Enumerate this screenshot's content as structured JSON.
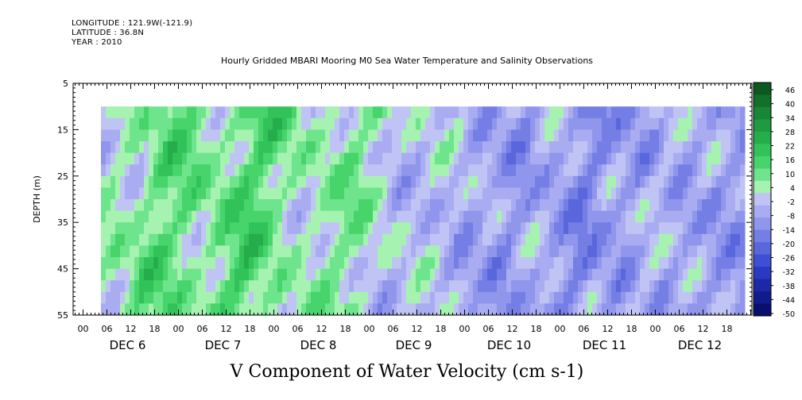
{
  "header": {
    "longitude": "LONGITUDE : 121.9W(-121.9)",
    "latitude": "LATITUDE : 36.8N",
    "year": "YEAR : 2010"
  },
  "chart_data": {
    "type": "heatmap",
    "title": "Hourly Gridded MBARI Mooring M0 Sea Water Temperature and Salinity Observations",
    "xlabel": "V Component of Water Velocity (cm s-1)",
    "ylabel": "DEPTH (m)",
    "ylim": [
      55,
      5
    ],
    "y_ticks": [
      5,
      15,
      25,
      35,
      45,
      55
    ],
    "data_depth_range": [
      10,
      55
    ],
    "x_hour_ticks": [
      "00",
      "06",
      "12",
      "18",
      "00",
      "06",
      "12",
      "18",
      "00",
      "06",
      "12",
      "18",
      "00",
      "06",
      "12",
      "18",
      "00",
      "06",
      "12",
      "18",
      "00",
      "06",
      "12",
      "18",
      "00",
      "06",
      "12",
      "18"
    ],
    "x_day_labels": [
      "DEC 6",
      "DEC 7",
      "DEC 8",
      "DEC 9",
      "DEC 10",
      "DEC 11",
      "DEC 12"
    ],
    "colorbar": {
      "labels": [
        "46",
        "40",
        "34",
        "28",
        "22",
        "16",
        "10",
        "4",
        "-2",
        "-8",
        "-14",
        "-20",
        "-26",
        "-32",
        "-38",
        "-44",
        "-50"
      ],
      "range": [
        -50,
        49
      ],
      "colors": [
        "#0a5a1e",
        "#13702a",
        "#198536",
        "#1f9a40",
        "#26ad4b",
        "#31c25a",
        "#46d46b",
        "#6ee48c",
        "#a6f2b0",
        "#c0c4f4",
        "#a9acf0",
        "#8f96ec",
        "#747ee4",
        "#5a66dc",
        "#3f4fd4",
        "#2a39c4",
        "#1c28a8",
        "#111c8c",
        "#080f6c"
      ]
    },
    "series": [
      {
        "name": "",
        "description_values": [
          {
            "x": "DEC 6 04",
            "v": -4
          },
          {
            "x": "DEC 6 10",
            "v": 6
          },
          {
            "x": "DEC 6 16",
            "v": 2
          },
          {
            "x": "DEC 6 22",
            "v": 14
          },
          {
            "x": "DEC 7 04",
            "v": 12
          },
          {
            "x": "DEC 7 10",
            "v": 4
          },
          {
            "x": "DEC 7 16",
            "v": 10
          },
          {
            "x": "DEC 7 22",
            "v": 18
          },
          {
            "x": "DEC 8 04",
            "v": 8
          },
          {
            "x": "DEC 8 10",
            "v": 2
          },
          {
            "x": "DEC 8 16",
            "v": 4
          },
          {
            "x": "DEC 8 22",
            "v": 10
          },
          {
            "x": "DEC 9 04",
            "v": 4
          },
          {
            "x": "DEC 9 10",
            "v": -4
          },
          {
            "x": "DEC 9 16",
            "v": -2
          },
          {
            "x": "DEC 9 22",
            "v": 0
          },
          {
            "x": "DEC 10 04",
            "v": -8
          },
          {
            "x": "DEC 10 10",
            "v": -6
          },
          {
            "x": "DEC 10 16",
            "v": -12
          },
          {
            "x": "DEC 10 22",
            "v": -4
          },
          {
            "x": "DEC 11 04",
            "v": -8
          },
          {
            "x": "DEC 11 10",
            "v": -16
          },
          {
            "x": "DEC 11 16",
            "v": -6
          },
          {
            "x": "DEC 11 22",
            "v": -10
          },
          {
            "x": "DEC 12 04",
            "v": -2
          },
          {
            "x": "DEC 12 10",
            "v": -8
          },
          {
            "x": "DEC 12 16",
            "v": -6
          },
          {
            "x": "DEC 12 22",
            "v": -10
          }
        ]
      }
    ],
    "grid": false
  }
}
